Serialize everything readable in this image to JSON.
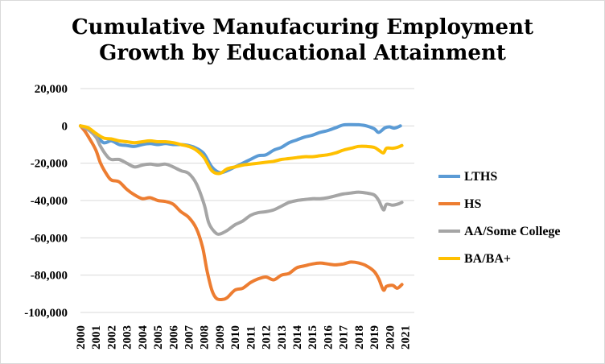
{
  "chart_data": {
    "type": "line",
    "title_line1": "Cumulative Manufacuring Employment",
    "title_line2": "Growth by Educational Attainment",
    "xlabel": "",
    "ylabel": "",
    "ylim": [
      -100000,
      20000
    ],
    "xlim": [
      2000,
      2021.6
    ],
    "yticks": [
      20000,
      0,
      -20000,
      -40000,
      -60000,
      -80000,
      -100000
    ],
    "ytick_labels": [
      "20,000",
      "0",
      "-20,000",
      "-40,000",
      "-60,000",
      "-80,000",
      "-100,000"
    ],
    "xticks": [
      "2000",
      "2001",
      "2002",
      "2003",
      "2004",
      "2005",
      "2006",
      "2007",
      "2008",
      "2009",
      "2010",
      "2011",
      "2012",
      "2013",
      "2014",
      "2015",
      "2016",
      "2017",
      "2018",
      "2019",
      "2020",
      "2021"
    ],
    "grid": "horizontal",
    "legend_position": "right",
    "series": [
      {
        "name": "LTHS",
        "color": "#5b9bd5",
        "points": [
          [
            2000,
            0
          ],
          [
            2000.5,
            -2000
          ],
          [
            2001,
            -5000
          ],
          [
            2001.5,
            -9000
          ],
          [
            2002,
            -8000
          ],
          [
            2002.5,
            -10000
          ],
          [
            2003,
            -10500
          ],
          [
            2003.5,
            -11000
          ],
          [
            2004,
            -10000
          ],
          [
            2004.5,
            -9500
          ],
          [
            2005,
            -10000
          ],
          [
            2005.5,
            -9500
          ],
          [
            2006,
            -10000
          ],
          [
            2006.5,
            -10000
          ],
          [
            2007,
            -10500
          ],
          [
            2007.5,
            -12000
          ],
          [
            2008,
            -15000
          ],
          [
            2008.5,
            -22000
          ],
          [
            2009,
            -25000
          ],
          [
            2009.5,
            -24000
          ],
          [
            2010,
            -22000
          ],
          [
            2010.5,
            -20000
          ],
          [
            2011,
            -18000
          ],
          [
            2011.5,
            -16000
          ],
          [
            2012,
            -15500
          ],
          [
            2012.5,
            -13000
          ],
          [
            2013,
            -11500
          ],
          [
            2013.5,
            -9000
          ],
          [
            2014,
            -7500
          ],
          [
            2014.5,
            -6000
          ],
          [
            2015,
            -5000
          ],
          [
            2015.5,
            -3500
          ],
          [
            2016,
            -2500
          ],
          [
            2016.5,
            -1000
          ],
          [
            2017,
            500
          ],
          [
            2017.5,
            700
          ],
          [
            2018,
            600
          ],
          [
            2018.5,
            0
          ],
          [
            2019,
            -1500
          ],
          [
            2019.3,
            -3500
          ],
          [
            2019.7,
            -1000
          ],
          [
            2020,
            -500
          ],
          [
            2020.3,
            -1200
          ],
          [
            2020.7,
            0
          ]
        ]
      },
      {
        "name": "HS",
        "color": "#ed7d31",
        "points": [
          [
            2000,
            0
          ],
          [
            2000.3,
            -3000
          ],
          [
            2000.6,
            -7000
          ],
          [
            2001,
            -13000
          ],
          [
            2001.3,
            -20000
          ],
          [
            2001.7,
            -26000
          ],
          [
            2002,
            -29000
          ],
          [
            2002.5,
            -30000
          ],
          [
            2003,
            -34000
          ],
          [
            2003.5,
            -37000
          ],
          [
            2004,
            -39000
          ],
          [
            2004.5,
            -38500
          ],
          [
            2005,
            -40000
          ],
          [
            2005.5,
            -40500
          ],
          [
            2006,
            -42000
          ],
          [
            2006.5,
            -46000
          ],
          [
            2007,
            -49000
          ],
          [
            2007.5,
            -55000
          ],
          [
            2007.9,
            -65000
          ],
          [
            2008.2,
            -78000
          ],
          [
            2008.5,
            -88000
          ],
          [
            2008.8,
            -92500
          ],
          [
            2009.2,
            -93000
          ],
          [
            2009.5,
            -92000
          ],
          [
            2010,
            -88000
          ],
          [
            2010.5,
            -87000
          ],
          [
            2011,
            -84000
          ],
          [
            2011.5,
            -82000
          ],
          [
            2012,
            -81000
          ],
          [
            2012.5,
            -82500
          ],
          [
            2013,
            -80000
          ],
          [
            2013.5,
            -79000
          ],
          [
            2014,
            -76000
          ],
          [
            2014.5,
            -75000
          ],
          [
            2015,
            -74000
          ],
          [
            2015.5,
            -73500
          ],
          [
            2016,
            -74000
          ],
          [
            2016.5,
            -74500
          ],
          [
            2017,
            -74000
          ],
          [
            2017.5,
            -73000
          ],
          [
            2018,
            -73500
          ],
          [
            2018.5,
            -75000
          ],
          [
            2019,
            -78000
          ],
          [
            2019.3,
            -82000
          ],
          [
            2019.6,
            -88000
          ],
          [
            2019.8,
            -86000
          ],
          [
            2020.2,
            -85500
          ],
          [
            2020.5,
            -87000
          ],
          [
            2020.8,
            -85000
          ]
        ]
      },
      {
        "name": "AA/Some College",
        "color": "#a5a5a5",
        "points": [
          [
            2000,
            0
          ],
          [
            2000.5,
            -2000
          ],
          [
            2001,
            -6000
          ],
          [
            2001.3,
            -11000
          ],
          [
            2001.7,
            -16000
          ],
          [
            2002,
            -18000
          ],
          [
            2002.5,
            -18000
          ],
          [
            2003,
            -20000
          ],
          [
            2003.5,
            -22000
          ],
          [
            2004,
            -21000
          ],
          [
            2004.5,
            -20500
          ],
          [
            2005,
            -21000
          ],
          [
            2005.5,
            -20500
          ],
          [
            2006,
            -22000
          ],
          [
            2006.5,
            -24000
          ],
          [
            2007,
            -25500
          ],
          [
            2007.5,
            -31000
          ],
          [
            2008,
            -42000
          ],
          [
            2008.3,
            -52000
          ],
          [
            2008.7,
            -57000
          ],
          [
            2009,
            -58000
          ],
          [
            2009.5,
            -56000
          ],
          [
            2010,
            -53000
          ],
          [
            2010.5,
            -51000
          ],
          [
            2011,
            -48000
          ],
          [
            2011.5,
            -46500
          ],
          [
            2012,
            -46000
          ],
          [
            2012.5,
            -45000
          ],
          [
            2013,
            -43000
          ],
          [
            2013.5,
            -41000
          ],
          [
            2014,
            -40000
          ],
          [
            2014.5,
            -39500
          ],
          [
            2015,
            -39000
          ],
          [
            2015.5,
            -39000
          ],
          [
            2016,
            -38500
          ],
          [
            2016.5,
            -37500
          ],
          [
            2017,
            -36500
          ],
          [
            2017.5,
            -36000
          ],
          [
            2018,
            -35500
          ],
          [
            2018.5,
            -36000
          ],
          [
            2019,
            -37000
          ],
          [
            2019.3,
            -40000
          ],
          [
            2019.6,
            -45000
          ],
          [
            2019.8,
            -42000
          ],
          [
            2020.2,
            -42500
          ],
          [
            2020.5,
            -42000
          ],
          [
            2020.8,
            -41000
          ]
        ]
      },
      {
        "name": "BA/BA+",
        "color": "#ffc000",
        "points": [
          [
            2000,
            0
          ],
          [
            2000.5,
            -1000
          ],
          [
            2001,
            -4000
          ],
          [
            2001.5,
            -6500
          ],
          [
            2002,
            -7000
          ],
          [
            2002.5,
            -8000
          ],
          [
            2003,
            -8500
          ],
          [
            2003.5,
            -9000
          ],
          [
            2004,
            -8500
          ],
          [
            2004.5,
            -8000
          ],
          [
            2005,
            -8500
          ],
          [
            2005.5,
            -8500
          ],
          [
            2006,
            -9000
          ],
          [
            2006.5,
            -10000
          ],
          [
            2007,
            -11000
          ],
          [
            2007.5,
            -13000
          ],
          [
            2008,
            -17000
          ],
          [
            2008.5,
            -24000
          ],
          [
            2009,
            -25500
          ],
          [
            2009.5,
            -23000
          ],
          [
            2010,
            -22000
          ],
          [
            2010.5,
            -21000
          ],
          [
            2011,
            -20500
          ],
          [
            2011.5,
            -20000
          ],
          [
            2012,
            -19500
          ],
          [
            2012.5,
            -19000
          ],
          [
            2013,
            -18000
          ],
          [
            2013.5,
            -17500
          ],
          [
            2014,
            -17000
          ],
          [
            2014.5,
            -16500
          ],
          [
            2015,
            -16500
          ],
          [
            2015.5,
            -16000
          ],
          [
            2016,
            -15500
          ],
          [
            2016.5,
            -14500
          ],
          [
            2017,
            -13000
          ],
          [
            2017.5,
            -12000
          ],
          [
            2018,
            -11000
          ],
          [
            2018.5,
            -11000
          ],
          [
            2019,
            -11500
          ],
          [
            2019.3,
            -13000
          ],
          [
            2019.6,
            -14500
          ],
          [
            2019.8,
            -12000
          ],
          [
            2020.2,
            -12000
          ],
          [
            2020.5,
            -11500
          ],
          [
            2020.8,
            -10500
          ]
        ]
      }
    ]
  }
}
